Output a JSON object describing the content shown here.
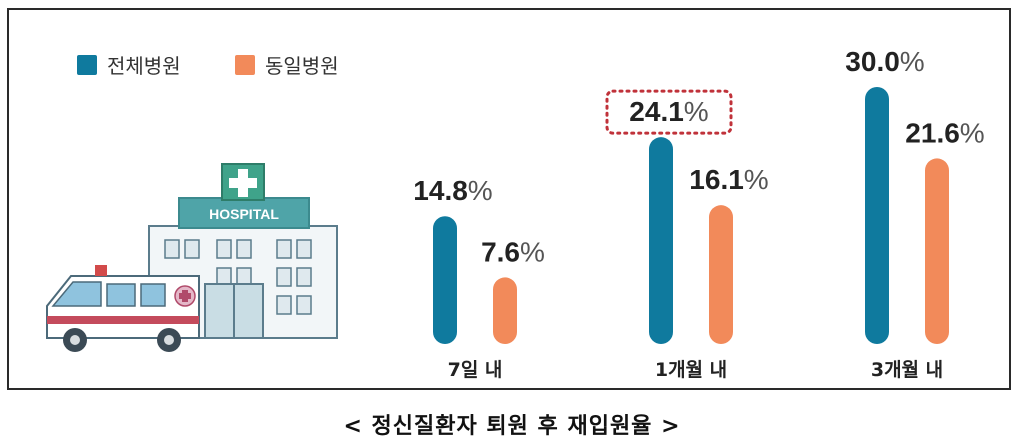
{
  "caption": "< 정신질환자 퇴원 후 재입원율 >",
  "legend": [
    {
      "name": "전체병원",
      "color": "#0f7a9e"
    },
    {
      "name": "동일병원",
      "color": "#f28a5a"
    }
  ],
  "illustration": {
    "sign_text": "HOSPITAL"
  },
  "chart_data": {
    "type": "bar",
    "categories": [
      "7일 내",
      "1개월 내",
      "3개월 내"
    ],
    "series": [
      {
        "name": "전체병원",
        "values": [
          14.8,
          24.1,
          30.0
        ],
        "labels": [
          "14.8",
          "24.1",
          "30.0"
        ],
        "color": "#0f7a9e"
      },
      {
        "name": "동일병원",
        "values": [
          7.6,
          16.1,
          21.6
        ],
        "labels": [
          "7.6",
          "16.1",
          "21.6"
        ],
        "color": "#f28a5a"
      }
    ],
    "unit": "%",
    "highlight": {
      "series": 0,
      "index": 1,
      "style": "dotted-box",
      "color": "#c0323a"
    },
    "title": "",
    "xlabel": "",
    "ylabel": ""
  }
}
